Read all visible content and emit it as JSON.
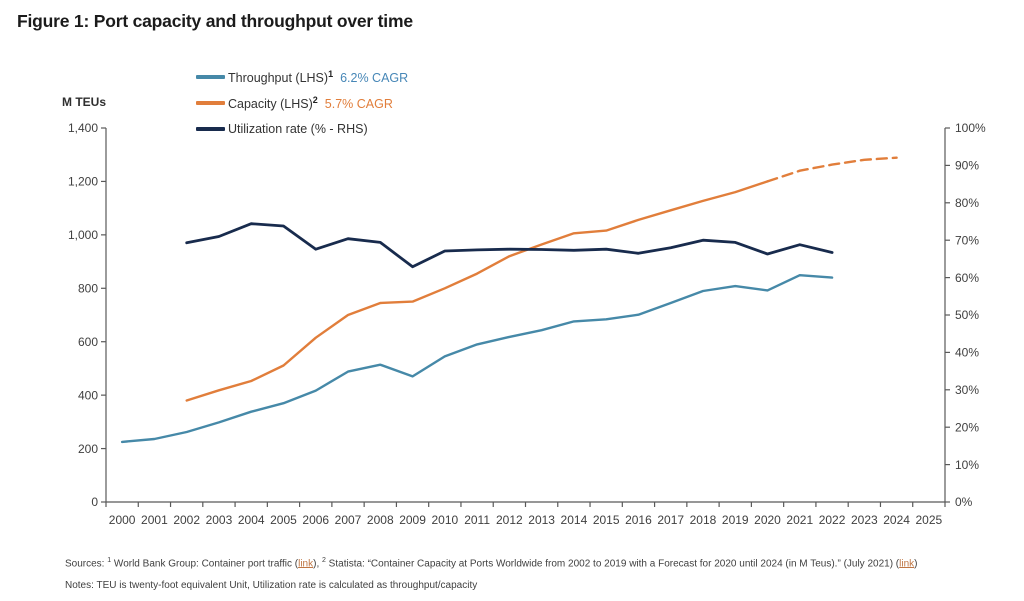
{
  "title": "Figure 1: Port capacity and throughput over time",
  "legend": {
    "items": [
      {
        "label": "Throughput (LHS)",
        "sup": "1",
        "cagr": "6.2% CAGR",
        "color": "#4689a8",
        "cagr_color": "#4787b7"
      },
      {
        "label": "Capacity (LHS)",
        "sup": "2",
        "cagr": "5.7% CAGR",
        "color": "#e17e3b",
        "cagr_color": "#e17e3b"
      },
      {
        "label": "Utilization rate (% - RHS)",
        "sup": "",
        "cagr": "",
        "color": "#182b4d",
        "cagr_color": ""
      }
    ]
  },
  "chart_data": {
    "type": "line",
    "title": "Figure 1: Port capacity and throughput over time",
    "grid": false,
    "legend_position": "top-left",
    "x": {
      "start": 2000,
      "end": 2025,
      "labels": [
        "2000",
        "2001",
        "2002",
        "2003",
        "2004",
        "2005",
        "2006",
        "2007",
        "2008",
        "2009",
        "2010",
        "2011",
        "2012",
        "2013",
        "2014",
        "2015",
        "2016",
        "2017",
        "2018",
        "2019",
        "2020",
        "2021",
        "2022",
        "2023",
        "2024",
        "2025"
      ]
    },
    "lhs": {
      "label": "M TEUs",
      "min": 0,
      "max": 1400,
      "tick_step": 200,
      "tick_labels": [
        "0",
        "200",
        "400",
        "600",
        "800",
        "1,000",
        "1,200",
        "1,400"
      ]
    },
    "rhs": {
      "min": 0,
      "max": 100,
      "tick_step": 10,
      "tick_labels": [
        "0%",
        "10%",
        "20%",
        "30%",
        "40%",
        "50%",
        "60%",
        "70%",
        "80%",
        "90%",
        "100%"
      ]
    },
    "series": [
      {
        "id": "throughput",
        "name": "Throughput (LHS)",
        "axis": "lhs",
        "color": "#4689a8",
        "width": 2.4,
        "cagr": "6.2% CAGR",
        "start_year": 2000,
        "values": [
          225,
          236,
          262,
          298,
          338,
          370,
          417,
          488,
          514,
          470,
          545,
          590,
          618,
          643,
          676,
          684,
          701,
          745,
          790,
          808,
          792,
          849,
          840
        ]
      },
      {
        "id": "capacity",
        "name": "Capacity (LHS)",
        "axis": "lhs",
        "color": "#e17e3b",
        "width": 2.4,
        "cagr": "5.7% CAGR",
        "start_year": 2002,
        "forecast_from": 2020,
        "values": [
          380,
          418,
          453,
          511,
          615,
          700,
          745,
          750,
          800,
          855,
          920,
          964,
          1006,
          1016,
          1056,
          1092,
          1127,
          1160,
          1200,
          1240,
          1263,
          1281,
          1289
        ]
      },
      {
        "id": "utilization",
        "name": "Utilization rate (% - RHS)",
        "axis": "rhs",
        "color": "#182b4d",
        "width": 2.8,
        "start_year": 2002,
        "values": [
          69.3,
          71.0,
          74.4,
          73.8,
          67.6,
          70.4,
          69.4,
          62.9,
          67.1,
          67.4,
          67.6,
          67.5,
          67.3,
          67.6,
          66.5,
          68.0,
          70.0,
          69.4,
          66.3,
          68.8,
          66.7
        ]
      }
    ]
  },
  "footer": {
    "sources": {
      "prefix": "Sources: ",
      "sup1": "1",
      "part1": " World Bank Group: Container port traffic (",
      "link1": "link",
      "part2": "), ",
      "sup2": "2",
      "part3": " Statista: “Container Capacity at Ports Worldwide from 2002 to 2019 with a Forecast for 2020 until 2024 (in M Teus).” (July 2021) (",
      "link2": "link",
      "part4": ")"
    },
    "notes": "Notes: TEU is twenty-foot equivalent Unit, Utilization rate is calculated as throughput/capacity"
  }
}
